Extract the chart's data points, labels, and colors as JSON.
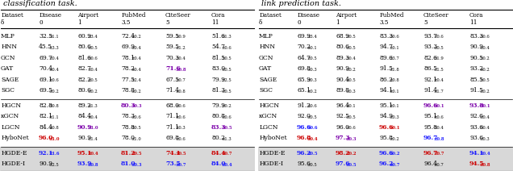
{
  "title_left": "classification task.",
  "title_right": "link prediction task.",
  "left_table": {
    "groups": [
      {
        "rows": [
          {
            "name": "MLP",
            "vals": [
              "32.5",
              "60.9",
              "72.4",
              "59.5",
              "51.6"
            ],
            "errs": [
              "1.1",
              "3.4",
              "0.2",
              "0.9",
              "1.3"
            ],
            "colors": [
              "k",
              "k",
              "k",
              "k",
              "k"
            ]
          },
          {
            "name": "HNN",
            "vals": [
              "45.5",
              "80.6",
              "69.9",
              "59.5",
              "54.7"
            ],
            "errs": [
              "3.3",
              "0.5",
              "0.4",
              "1.2",
              "0.6"
            ],
            "colors": [
              "k",
              "k",
              "k",
              "k",
              "k"
            ]
          },
          {
            "name": "GCN",
            "vals": [
              "69.7",
              "81.6",
              "78.1",
              "70.3",
              "81.5"
            ],
            "errs": [
              "0.4",
              "0.6",
              "0.4",
              "0.4",
              "0.5"
            ],
            "colors": [
              "k",
              "k",
              "k",
              "k",
              "k"
            ]
          },
          {
            "name": "GAT",
            "vals": [
              "70.4",
              "82.7",
              "78.2",
              "71.6",
              "83.0"
            ],
            "errs": [
              "0.4",
              "0.4",
              "0.4",
              "0.8",
              "0.5"
            ],
            "colors": [
              "k",
              "k",
              "k",
              "purple",
              "k"
            ]
          },
          {
            "name": "SAGE",
            "vals": [
              "69.1",
              "82.2",
              "77.5",
              "67.5",
              "79.9"
            ],
            "errs": [
              "0.6",
              "0.5",
              "2.4",
              "0.7",
              "2.5"
            ],
            "colors": [
              "k",
              "k",
              "k",
              "k",
              "k"
            ]
          },
          {
            "name": "SGC",
            "vals": [
              "69.5",
              "80.6",
              "78.8",
              "71.4",
              "81.3"
            ],
            "errs": [
              "0.2",
              "0.2",
              "0.2",
              "0.8",
              "0.5"
            ],
            "colors": [
              "k",
              "k",
              "k",
              "k",
              "k"
            ]
          }
        ]
      },
      {
        "rows": [
          {
            "name": "HGCN",
            "vals": [
              "82.8",
              "89.2",
              "80.3",
              "68.0",
              "79.9"
            ],
            "errs": [
              "0.8",
              "1.3",
              "0.3",
              "0.6",
              "0.2"
            ],
            "colors": [
              "k",
              "k",
              "purple",
              "k",
              "k"
            ]
          },
          {
            "name": "κGCN",
            "vals": [
              "82.1",
              "84.4",
              "78.3",
              "71.1",
              "80.8"
            ],
            "errs": [
              "1.1",
              "0.4",
              "0.6",
              "0.6",
              "0.6"
            ],
            "colors": [
              "k",
              "k",
              "k",
              "k",
              "k"
            ]
          },
          {
            "name": "LGCN",
            "vals": [
              "84.4",
              "90.9",
              "78.8",
              "71.1",
              "83.3"
            ],
            "errs": [
              "0.8",
              "1.0",
              "0.5",
              "0.3",
              "0.5"
            ],
            "colors": [
              "k",
              "purple",
              "k",
              "k",
              "purple"
            ]
          },
          {
            "name": "HyboNet",
            "vals": [
              "96.0",
              "90.9",
              "78.0",
              "69.8",
              "80.2"
            ],
            "errs": [
              "1.0",
              "1.4",
              "1.0",
              "0.6",
              "1.3"
            ],
            "colors": [
              "red",
              "k",
              "k",
              "k",
              "k"
            ]
          }
        ]
      },
      {
        "rows": [
          {
            "name": "HGDE-E",
            "vals": [
              "92.1",
              "95.1",
              "81.2",
              "74.1",
              "84.4"
            ],
            "errs": [
              "1.6",
              "0.4",
              "0.5",
              "0.5",
              "0.7"
            ],
            "colors": [
              "blue",
              "red",
              "red",
              "red",
              "red"
            ]
          },
          {
            "name": "HGDE-I",
            "vals": [
              "90.9",
              "93.9",
              "81.0",
              "73.5",
              "84.0"
            ],
            "errs": [
              "2.5",
              "0.8",
              "0.3",
              "0.7",
              "0.4"
            ],
            "colors": [
              "k",
              "blue",
              "blue",
              "blue",
              "blue"
            ]
          }
        ]
      }
    ]
  },
  "right_table": {
    "groups": [
      {
        "rows": [
          {
            "name": "MLP",
            "vals": [
              "69.9",
              "68.9",
              "83.3",
              "93.7",
              "83.3"
            ],
            "errs": [
              "3.4",
              "0.5",
              "0.6",
              "0.6",
              "0.6"
            ],
            "colors": [
              "k",
              "k",
              "k",
              "k",
              "k"
            ]
          },
          {
            "name": "HNN",
            "vals": [
              "70.2",
              "80.6",
              "94.7",
              "93.3",
              "90.9"
            ],
            "errs": [
              "0.1",
              "0.5",
              "0.1",
              "0.5",
              "0.4"
            ],
            "colors": [
              "k",
              "k",
              "k",
              "k",
              "k"
            ]
          },
          {
            "name": "GCN",
            "vals": [
              "64.7",
              "89.3",
              "89.6",
              "82.6",
              "90.5"
            ],
            "errs": [
              "0.5",
              "0.4",
              "3.7",
              "1.9",
              "0.2"
            ],
            "colors": [
              "k",
              "k",
              "k",
              "k",
              "k"
            ]
          },
          {
            "name": "GAT",
            "vals": [
              "69.8",
              "90.9",
              "91.5",
              "86.5",
              "93.2"
            ],
            "errs": [
              "0.3",
              "0.2",
              "1.8",
              "1.5",
              "0.2"
            ],
            "colors": [
              "k",
              "k",
              "k",
              "k",
              "k"
            ]
          },
          {
            "name": "SAGE",
            "vals": [
              "65.9",
              "90.4",
              "86.2",
              "92.1",
              "85.5"
            ],
            "errs": [
              "0.3",
              "0.5",
              "0.8",
              "0.4",
              "0.5"
            ],
            "colors": [
              "k",
              "k",
              "k",
              "k",
              "k"
            ]
          },
          {
            "name": "SGC",
            "vals": [
              "65.1",
              "89.8",
              "94.1",
              "91.4",
              "91.5"
            ],
            "errs": [
              "0.2",
              "0.3",
              "0.1",
              "1.7",
              "0.2"
            ],
            "colors": [
              "k",
              "k",
              "k",
              "k",
              "k"
            ]
          }
        ]
      },
      {
        "rows": [
          {
            "name": "HGCN",
            "vals": [
              "91.2",
              "96.4",
              "95.1",
              "96.6",
              "93.8"
            ],
            "errs": [
              "0.6",
              "0.1",
              "0.1",
              "0.1",
              "0.1"
            ],
            "colors": [
              "k",
              "k",
              "k",
              "purple",
              "purple"
            ]
          },
          {
            "name": "κGCN",
            "vals": [
              "92.0",
              "92.5",
              "94.9",
              "95.1",
              "92.6"
            ],
            "errs": [
              "0.5",
              "0.5",
              "0.3",
              "0.6",
              "0.4"
            ],
            "colors": [
              "k",
              "k",
              "k",
              "k",
              "k"
            ]
          },
          {
            "name": "LGCN",
            "vals": [
              "96.6",
              "96.0",
              "96.6",
              "95.8",
              "93.6"
            ],
            "errs": [
              "0.6",
              "0.6",
              "0.1",
              "0.4",
              "0.4"
            ],
            "colors": [
              "blue",
              "k",
              "red",
              "k",
              "k"
            ]
          },
          {
            "name": "HyboNet",
            "vals": [
              "96.8",
              "97.3",
              "95.8",
              "96.7",
              "93.6"
            ],
            "errs": [
              "0.4",
              "0.3",
              "0.2",
              "0.8",
              "0.3"
            ],
            "colors": [
              "red",
              "purple",
              "k",
              "blue",
              "k"
            ]
          }
        ]
      },
      {
        "rows": [
          {
            "name": "HGDE-E",
            "vals": [
              "96.2",
              "98.2",
              "96.6",
              "96.7",
              "94.1"
            ],
            "errs": [
              "0.5",
              "0.2",
              "0.2",
              "0.7",
              "0.4"
            ],
            "colors": [
              "blue",
              "red",
              "blue",
              "red",
              "blue"
            ]
          },
          {
            "name": "HGDE-I",
            "vals": [
              "95.6",
              "97.6",
              "96.2",
              "96.4",
              "94.5"
            ],
            "errs": [
              "0.5",
              "0.5",
              "0.7",
              "0.7",
              "0.8"
            ],
            "colors": [
              "k",
              "blue",
              "blue",
              "k",
              "red"
            ]
          }
        ]
      }
    ]
  }
}
